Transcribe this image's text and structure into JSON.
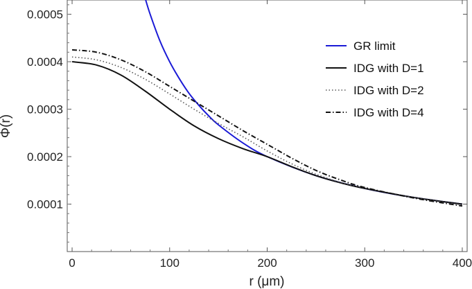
{
  "chart_data": {
    "type": "line",
    "xlabel": "r (μm)",
    "ylabel": "Φ(r)",
    "xlim": [
      -5,
      405
    ],
    "ylim": [
      0,
      0.00053
    ],
    "x_ticks": [
      0,
      100,
      200,
      300,
      400
    ],
    "x_tick_labels": [
      "0",
      "100",
      "200",
      "300",
      "400"
    ],
    "y_ticks": [
      0.0001,
      0.0002,
      0.0003,
      0.0004,
      0.0005
    ],
    "y_tick_labels": [
      "0.0001",
      "0.0002",
      "0.0003",
      "0.0004",
      "0.0005"
    ],
    "grid": false,
    "legend_position": "top-right",
    "series": [
      {
        "name": "GR limit",
        "color": "#1a1ad6",
        "style": "solid",
        "x": [
          75,
          80,
          90,
          100,
          110,
          120,
          130,
          140,
          150,
          175,
          200,
          250,
          300,
          350,
          400
        ],
        "y": [
          0.000533,
          0.0005,
          0.000444,
          0.0004,
          0.000364,
          0.000333,
          0.000308,
          0.000286,
          0.000267,
          0.000229,
          0.0002,
          0.00016,
          0.000133,
          0.000114,
          0.0001
        ]
      },
      {
        "name": "IDG with D=1",
        "color": "#111111",
        "style": "solid",
        "x": [
          0,
          25,
          50,
          75,
          100,
          125,
          150,
          175,
          200,
          225,
          250,
          275,
          300,
          350,
          400
        ],
        "y": [
          0.0004,
          0.000393,
          0.000372,
          0.000338,
          0.0003,
          0.000265,
          0.000238,
          0.000217,
          0.0002,
          0.000179,
          0.00016,
          0.000145,
          0.000133,
          0.000114,
          0.0001
        ]
      },
      {
        "name": "IDG with D=2",
        "color": "#555555",
        "style": "dotted",
        "x": [
          0,
          25,
          50,
          75,
          100,
          125,
          150,
          175,
          200,
          225,
          250,
          275,
          300,
          350,
          400
        ],
        "y": [
          0.00041,
          0.000404,
          0.000388,
          0.000363,
          0.000332,
          0.0003,
          0.00027,
          0.000242,
          0.000212,
          0.000185,
          0.000163,
          0.000146,
          0.000134,
          0.000114,
          9.8e-05
        ]
      },
      {
        "name": "IDG with D=4",
        "color": "#111111",
        "style": "dashdot",
        "x": [
          0,
          25,
          50,
          75,
          100,
          125,
          150,
          175,
          200,
          225,
          250,
          275,
          300,
          350,
          400
        ],
        "y": [
          0.000425,
          0.00042,
          0.000404,
          0.000379,
          0.000348,
          0.000317,
          0.000286,
          0.000255,
          0.000226,
          0.000197,
          0.000171,
          0.000151,
          0.000135,
          0.000113,
          9.6e-05
        ]
      }
    ]
  }
}
